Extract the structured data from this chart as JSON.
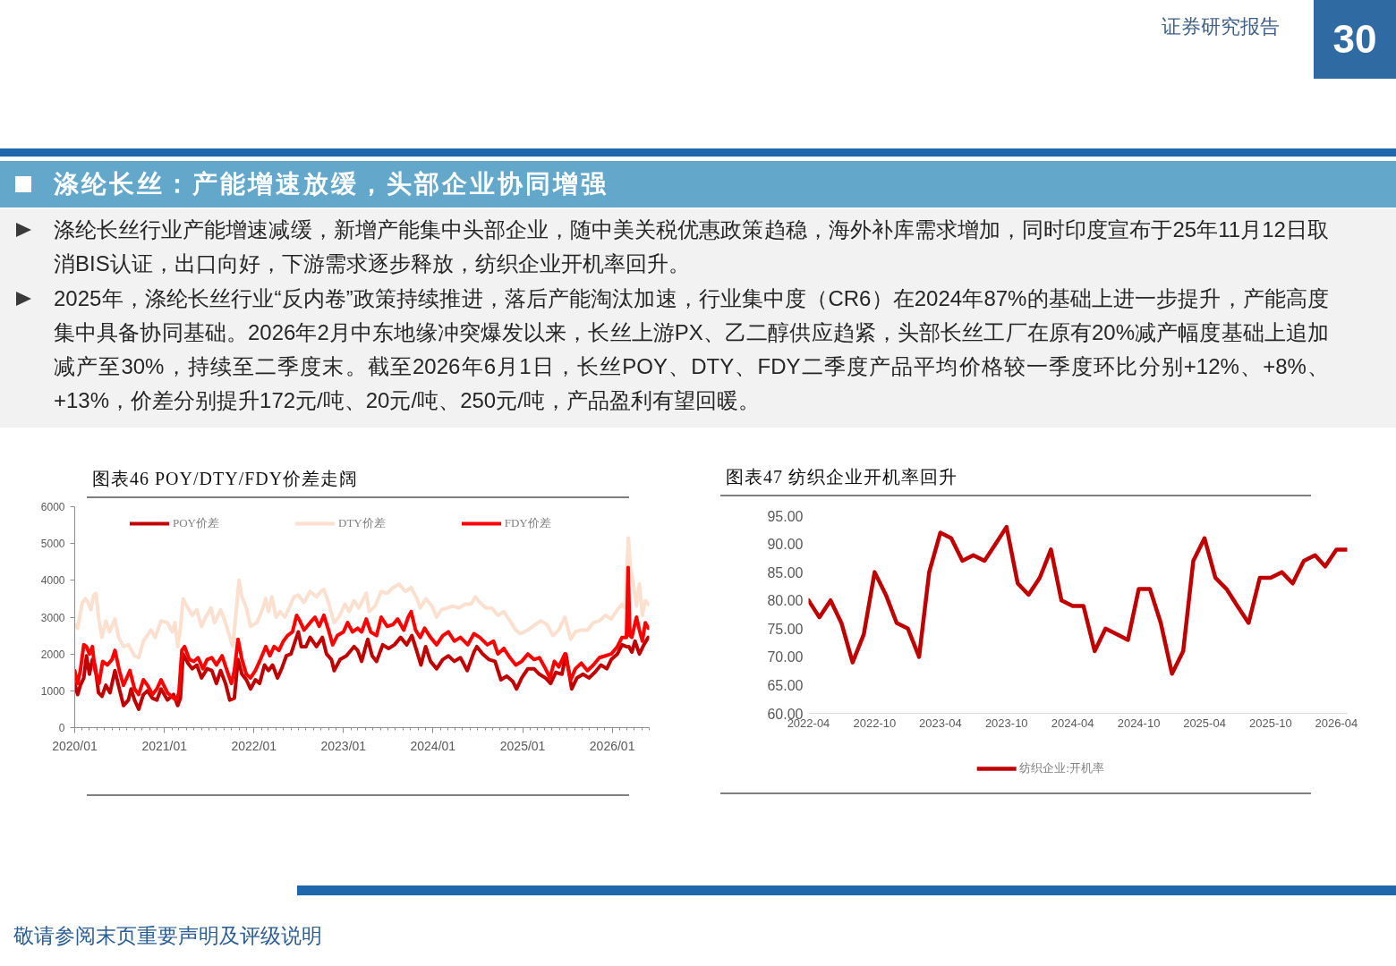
{
  "chart_data": [
    {
      "type": "other",
      "title": "涤纶长丝：产能增速放缓，头部企业协同增强",
      "annotations": [
        "证券研究报告",
        "30",
        "涤纶长丝行业产能增速减缓，新增产能集中头部企业，随中美关税优惠政策趋稳，海外补库需求增加，同时印度宣布于25年11月12日取消BIS认证，出口向好，下游需求逐步释放，纺织企业开机率回升。",
        "2025年，涤纶长丝行业“反内卷”政策持续推进，落后产能淘汰加速，行业集中度（CR6）在2024年87%的基础上进一步提升，产能高度集中具备协同基础。2026年2月中东地缘冲突爆发以来，长丝上游PX、乙二醇供应趋紧，头部长丝工厂在原有20%减产幅度基础上追加减产至30%，持续至二季度末。截至2026年6月1日，长丝POY、DTY、FDY二季度产品平均价格较一季度环比分别+12%、+8%、+13%，价差分别提升172元/吨、20元/吨、250元/吨，产品盈利有望回暖。"
      ]
    },
    {
      "type": "line",
      "title": "图表46 POY/DTY/FDY价差走阔",
      "xlim": [
        "2020-01-01",
        "2026-06-01"
      ],
      "ylim": [
        0,
        6000
      ],
      "yticks": [
        0,
        1000,
        2000,
        3000,
        4000,
        5000,
        6000
      ],
      "legend": "top",
      "xticks": [
        {
          "value": "2020-01-01",
          "label": "2020/01"
        },
        {
          "value": "2020-02-01",
          "label": null
        },
        {
          "value": "2020-03-01",
          "label": null
        },
        {
          "value": "2020-04-01",
          "label": null
        },
        {
          "value": "2020-05-01",
          "label": null
        },
        {
          "value": "2020-06-01",
          "label": null
        },
        {
          "value": "2020-07-01",
          "label": null
        },
        {
          "value": "2020-08-01",
          "label": null
        },
        {
          "value": "2020-09-01",
          "label": null
        },
        {
          "value": "2020-10-01",
          "label": null
        },
        {
          "value": "2020-11-01",
          "label": null
        },
        {
          "value": "2020-12-01",
          "label": null
        },
        {
          "value": "2021-01-01",
          "label": "2021/01"
        },
        {
          "value": "2021-02-01",
          "label": null
        },
        {
          "value": "2021-03-01",
          "label": null
        },
        {
          "value": "2021-04-01",
          "label": null
        },
        {
          "value": "2021-05-01",
          "label": null
        },
        {
          "value": "2021-06-01",
          "label": null
        },
        {
          "value": "2021-07-01",
          "label": null
        },
        {
          "value": "2021-08-01",
          "label": null
        },
        {
          "value": "2021-09-01",
          "label": null
        },
        {
          "value": "2021-10-01",
          "label": null
        },
        {
          "value": "2021-11-01",
          "label": null
        },
        {
          "value": "2021-12-01",
          "label": null
        },
        {
          "value": "2022-01-01",
          "label": "2022/01"
        },
        {
          "value": "2022-02-01",
          "label": null
        },
        {
          "value": "2022-03-01",
          "label": null
        },
        {
          "value": "2022-04-01",
          "label": null
        },
        {
          "value": "2022-05-01",
          "label": null
        },
        {
          "value": "2022-06-01",
          "label": null
        },
        {
          "value": "2022-07-01",
          "label": null
        },
        {
          "value": "2022-08-01",
          "label": null
        },
        {
          "value": "2022-09-01",
          "label": null
        },
        {
          "value": "2022-10-01",
          "label": null
        },
        {
          "value": "2022-11-01",
          "label": null
        },
        {
          "value": "2022-12-01",
          "label": null
        },
        {
          "value": "2023-01-01",
          "label": "2023/01"
        },
        {
          "value": "2023-02-01",
          "label": null
        },
        {
          "value": "2023-03-01",
          "label": null
        },
        {
          "value": "2023-04-01",
          "label": null
        },
        {
          "value": "2023-05-01",
          "label": null
        },
        {
          "value": "2023-06-01",
          "label": null
        },
        {
          "value": "2023-07-01",
          "label": null
        },
        {
          "value": "2023-08-01",
          "label": null
        },
        {
          "value": "2023-09-01",
          "label": null
        },
        {
          "value": "2023-10-01",
          "label": null
        },
        {
          "value": "2023-11-01",
          "label": null
        },
        {
          "value": "2023-12-01",
          "label": null
        },
        {
          "value": "2024-01-01",
          "label": "2024/01"
        },
        {
          "value": "2024-02-01",
          "label": null
        },
        {
          "value": "2024-03-01",
          "label": null
        },
        {
          "value": "2024-04-01",
          "label": null
        },
        {
          "value": "2024-05-01",
          "label": null
        },
        {
          "value": "2024-06-01",
          "label": null
        },
        {
          "value": "2024-07-01",
          "label": null
        },
        {
          "value": "2024-08-01",
          "label": null
        },
        {
          "value": "2024-09-01",
          "label": null
        },
        {
          "value": "2024-10-01",
          "label": null
        },
        {
          "value": "2024-11-01",
          "label": null
        },
        {
          "value": "2024-12-01",
          "label": null
        },
        {
          "value": "2025-01-01",
          "label": "2025/01"
        },
        {
          "value": "2025-02-01",
          "label": null
        },
        {
          "value": "2025-03-01",
          "label": null
        },
        {
          "value": "2025-04-01",
          "label": null
        },
        {
          "value": "2025-05-01",
          "label": null
        },
        {
          "value": "2025-06-01",
          "label": null
        },
        {
          "value": "2025-07-01",
          "label": null
        },
        {
          "value": "2025-08-01",
          "label": null
        },
        {
          "value": "2025-09-01",
          "label": null
        },
        {
          "value": "2025-10-01",
          "label": null
        },
        {
          "value": "2025-11-01",
          "label": null
        },
        {
          "value": "2025-12-01",
          "label": null
        },
        {
          "value": "2026-01-01",
          "label": "2026/01"
        },
        {
          "value": "2026-02-01",
          "label": null
        },
        {
          "value": "2026-03-01",
          "label": null
        },
        {
          "value": "2026-04-01",
          "label": null
        },
        {
          "value": "2026-05-01",
          "label": null
        },
        {
          "value": "2026-06-01",
          "label": null
        }
      ],
      "series": [
        {
          "name": "POY价差",
          "color": "#c00000",
          "x": [
            "2020-01-01",
            "2020-01-13",
            "2020-01-24",
            "2020-02-07",
            "2020-02-18",
            "2020-03-01",
            "2020-03-13",
            "2020-03-24",
            "2020-04-07",
            "2020-04-21",
            "2020-05-07",
            "2020-05-24",
            "2020-06-13",
            "2020-07-01",
            "2020-07-18",
            "2020-08-07",
            "2020-08-18",
            "2020-09-01",
            "2020-09-18",
            "2020-10-07",
            "2020-10-24",
            "2020-11-13",
            "2020-12-01",
            "2020-12-18",
            "2021-01-13",
            "2021-02-07",
            "2021-02-24",
            "2021-03-07",
            "2021-03-18",
            "2021-04-07",
            "2021-04-24",
            "2021-05-13",
            "2021-06-01",
            "2021-06-24",
            "2021-07-13",
            "2021-08-01",
            "2021-08-18",
            "2021-09-07",
            "2021-09-24",
            "2021-10-13",
            "2021-10-28",
            "2021-11-13",
            "2021-12-01",
            "2021-12-18",
            "2022-01-07",
            "2022-01-24",
            "2022-02-13",
            "2022-03-01",
            "2022-03-18",
            "2022-04-07",
            "2022-04-24",
            "2022-05-13",
            "2022-06-01",
            "2022-06-18",
            "2022-07-01",
            "2022-07-13",
            "2022-08-01",
            "2022-08-18",
            "2022-09-13",
            "2022-10-07",
            "2022-10-24",
            "2022-11-13",
            "2022-11-24",
            "2022-12-18",
            "2023-01-13",
            "2023-02-01",
            "2023-02-13",
            "2023-02-28",
            "2023-03-16",
            "2023-04-10",
            "2023-04-28",
            "2023-05-16",
            "2023-06-10",
            "2023-07-04",
            "2023-07-28",
            "2023-08-22",
            "2023-09-16",
            "2023-10-07",
            "2023-10-26",
            "2023-11-13",
            "2023-12-02",
            "2023-12-22",
            "2024-01-16",
            "2024-02-10",
            "2024-03-04",
            "2024-03-28",
            "2024-04-22",
            "2024-05-20",
            "2024-06-16",
            "2024-06-28",
            "2024-07-22",
            "2024-08-16",
            "2024-09-10",
            "2024-10-04",
            "2024-10-28",
            "2024-11-22",
            "2024-12-07",
            "2024-12-28",
            "2025-01-22",
            "2025-02-16",
            "2025-03-10",
            "2025-04-04",
            "2025-04-25",
            "2025-05-16",
            "2025-06-10",
            "2025-06-26",
            "2025-07-20",
            "2025-08-10",
            "2025-09-04",
            "2025-09-28",
            "2025-10-22",
            "2025-11-16",
            "2025-12-10",
            "2025-12-28",
            "2026-01-22",
            "2026-02-10",
            "2026-02-28",
            "2026-03-10",
            "2026-03-22",
            "2026-04-04",
            "2026-04-22",
            "2026-05-10",
            "2026-05-28"
          ],
          "values": [
            1200,
            900,
            1150,
            1350,
            1950,
            1450,
            1850,
            1700,
            950,
            850,
            1150,
            950,
            1550,
            1050,
            600,
            750,
            1050,
            750,
            500,
            900,
            1000,
            800,
            750,
            1050,
            750,
            900,
            600,
            800,
            2000,
            1750,
            1600,
            1700,
            1350,
            1600,
            1550,
            1200,
            1550,
            1200,
            750,
            800,
            1850,
            1450,
            1300,
            1050,
            1300,
            1200,
            1700,
            1550,
            1700,
            1350,
            1600,
            1950,
            2000,
            2350,
            2600,
            2200,
            2200,
            2450,
            2200,
            2450,
            2000,
            1850,
            1550,
            1850,
            1950,
            2100,
            2200,
            2100,
            1800,
            2400,
            1950,
            1800,
            2250,
            2150,
            2250,
            2450,
            2250,
            2500,
            2100,
            1700,
            2200,
            1800,
            1600,
            1850,
            1950,
            1800,
            1900,
            1550,
            2050,
            2200,
            2000,
            1850,
            1800,
            1300,
            1400,
            1250,
            1050,
            1350,
            1600,
            1600,
            1450,
            1350,
            1200,
            1500,
            1450,
            2000,
            1050,
            1350,
            1450,
            1350,
            1500,
            1700,
            1600,
            1850,
            2000,
            2250,
            2200,
            2200,
            2050,
            2350,
            2000,
            2250,
            2450
          ]
        },
        {
          "name": "DTY价差",
          "color": "#fbe0d0",
          "x": [
            "2020-01-01",
            "2020-01-13",
            "2020-02-01",
            "2020-02-13",
            "2020-02-24",
            "2020-03-07",
            "2020-03-18",
            "2020-03-28",
            "2020-04-07",
            "2020-04-21",
            "2020-05-07",
            "2020-05-22",
            "2020-06-13",
            "2020-06-28",
            "2020-07-18",
            "2020-08-07",
            "2020-09-01",
            "2020-09-18",
            "2020-10-07",
            "2020-11-07",
            "2020-11-24",
            "2020-12-18",
            "2021-01-13",
            "2021-02-01",
            "2021-02-13",
            "2021-02-24",
            "2021-03-07",
            "2021-03-18",
            "2021-04-07",
            "2021-04-24",
            "2021-05-13",
            "2021-06-01",
            "2021-06-18",
            "2021-07-10",
            "2021-07-24",
            "2021-08-18",
            "2021-09-07",
            "2021-09-18",
            "2021-10-07",
            "2021-10-18",
            "2021-11-01",
            "2021-11-13",
            "2021-12-01",
            "2021-12-18",
            "2022-01-13",
            "2022-02-01",
            "2022-02-18",
            "2022-03-01",
            "2022-03-15",
            "2022-04-01",
            "2022-04-18",
            "2022-05-07",
            "2022-05-24",
            "2022-06-13",
            "2022-07-01",
            "2022-07-24",
            "2022-08-18",
            "2022-09-13",
            "2022-10-01",
            "2022-10-13",
            "2022-11-01",
            "2022-11-24",
            "2022-12-13",
            "2023-01-07",
            "2023-01-24",
            "2023-02-13",
            "2023-03-04",
            "2023-04-04",
            "2023-04-16",
            "2023-05-10",
            "2023-06-04",
            "2023-06-28",
            "2023-07-22",
            "2023-08-16",
            "2023-09-10",
            "2023-10-04",
            "2023-10-28",
            "2023-11-10",
            "2023-12-04",
            "2023-12-28",
            "2024-01-16",
            "2024-02-04",
            "2024-02-28",
            "2024-03-22",
            "2024-04-16",
            "2024-05-10",
            "2024-06-04",
            "2024-06-22",
            "2024-07-10",
            "2024-08-04",
            "2024-08-28",
            "2024-09-22",
            "2024-10-16",
            "2024-11-10",
            "2024-12-04",
            "2024-12-22",
            "2025-01-22",
            "2025-02-22",
            "2025-03-16",
            "2025-04-10",
            "2025-05-04",
            "2025-05-28",
            "2025-06-22",
            "2025-07-16",
            "2025-08-04",
            "2025-08-28",
            "2025-09-22",
            "2025-10-16",
            "2025-11-10",
            "2025-12-04",
            "2025-12-28",
            "2026-01-22",
            "2026-02-10",
            "2026-02-22",
            "2026-03-08",
            "2026-03-16",
            "2026-03-28",
            "2026-04-10",
            "2026-04-22",
            "2026-05-04",
            "2026-05-16",
            "2026-05-28"
          ],
          "values": [
            2800,
            2700,
            3400,
            3500,
            3400,
            3200,
            3600,
            3650,
            3000,
            2450,
            2900,
            2600,
            2950,
            2450,
            2200,
            2250,
            1950,
            1900,
            2350,
            2650,
            2450,
            2900,
            2850,
            2600,
            2850,
            2200,
            2700,
            3500,
            3250,
            3050,
            3200,
            2750,
            3000,
            3250,
            2850,
            3200,
            2850,
            2600,
            2200,
            3000,
            4000,
            3550,
            3250,
            2750,
            2850,
            3150,
            3500,
            3150,
            3550,
            3000,
            3150,
            3000,
            3250,
            3550,
            3600,
            3400,
            3700,
            3550,
            3700,
            3750,
            3400,
            2850,
            3000,
            3350,
            3150,
            3450,
            3250,
            3650,
            3150,
            3300,
            3700,
            3650,
            3800,
            3900,
            3700,
            3800,
            3500,
            3250,
            3500,
            3300,
            3000,
            3200,
            3250,
            3300,
            3250,
            3350,
            3350,
            3550,
            3400,
            3250,
            3250,
            3050,
            3150,
            2900,
            2650,
            2550,
            2650,
            2800,
            2900,
            2800,
            2500,
            2650,
            3000,
            2400,
            2600,
            2650,
            2650,
            2850,
            2900,
            3050,
            2950,
            3200,
            3350,
            3250,
            5150,
            4350,
            3900,
            3300,
            3900,
            3050,
            3450,
            3350
          ]
        },
        {
          "name": "FDY价差",
          "color": "#ff0000",
          "x": [
            "2020-01-01",
            "2020-01-13",
            "2020-01-24",
            "2020-02-07",
            "2020-02-18",
            "2020-03-01",
            "2020-03-13",
            "2020-03-24",
            "2020-04-09",
            "2020-04-24",
            "2020-05-13",
            "2020-06-01",
            "2020-06-13",
            "2020-07-01",
            "2020-07-18",
            "2020-08-13",
            "2020-09-01",
            "2020-09-18",
            "2020-10-07",
            "2020-10-24",
            "2020-11-13",
            "2020-12-01",
            "2020-12-18",
            "2021-01-13",
            "2021-02-07",
            "2021-02-18",
            "2021-03-01",
            "2021-03-13",
            "2021-03-24",
            "2021-04-13",
            "2021-05-01",
            "2021-05-18",
            "2021-06-07",
            "2021-06-24",
            "2021-07-13",
            "2021-08-01",
            "2021-08-24",
            "2021-09-13",
            "2021-10-01",
            "2021-10-13",
            "2021-10-28",
            "2021-11-13",
            "2021-12-01",
            "2021-12-18",
            "2022-01-07",
            "2022-01-24",
            "2022-02-18",
            "2022-03-07",
            "2022-03-24",
            "2022-04-13",
            "2022-05-01",
            "2022-05-18",
            "2022-06-07",
            "2022-06-24",
            "2022-07-07",
            "2022-07-24",
            "2022-08-18",
            "2022-09-07",
            "2022-09-24",
            "2022-10-13",
            "2022-11-01",
            "2022-11-18",
            "2022-12-07",
            "2023-01-01",
            "2023-01-18",
            "2023-02-07",
            "2023-02-28",
            "2023-03-16",
            "2023-04-04",
            "2023-04-22",
            "2023-05-16",
            "2023-06-04",
            "2023-06-28",
            "2023-07-22",
            "2023-08-10",
            "2023-09-04",
            "2023-09-22",
            "2023-10-04",
            "2023-10-22",
            "2023-11-10",
            "2023-11-28",
            "2023-12-22",
            "2024-01-16",
            "2024-02-10",
            "2024-03-04",
            "2024-03-28",
            "2024-04-22",
            "2024-05-22",
            "2024-06-16",
            "2024-07-10",
            "2024-08-10",
            "2024-09-04",
            "2024-09-22",
            "2024-10-16",
            "2024-11-10",
            "2024-12-04",
            "2024-12-28",
            "2025-01-22",
            "2025-02-16",
            "2025-03-10",
            "2025-04-04",
            "2025-04-22",
            "2025-05-10",
            "2025-05-28",
            "2025-06-22",
            "2025-07-16",
            "2025-08-04",
            "2025-08-28",
            "2025-09-22",
            "2025-10-16",
            "2025-11-10",
            "2025-12-04",
            "2025-12-28",
            "2026-01-22",
            "2026-02-10",
            "2026-02-28",
            "2026-03-07",
            "2026-03-14",
            "2026-03-22",
            "2026-04-10",
            "2026-04-22",
            "2026-05-04",
            "2026-05-16",
            "2026-05-28"
          ],
          "values": [
            1550,
            1200,
            1550,
            2250,
            2200,
            2000,
            2200,
            1550,
            1200,
            1800,
            1700,
            1850,
            2100,
            1550,
            1150,
            1550,
            1050,
            900,
            1300,
            1150,
            900,
            1050,
            1300,
            950,
            800,
            750,
            950,
            2100,
            2200,
            1850,
            1800,
            1900,
            1600,
            1850,
            1900,
            1700,
            1950,
            1550,
            1200,
            1550,
            2400,
            1850,
            1450,
            1350,
            1550,
            1800,
            2200,
            1950,
            2200,
            2100,
            2350,
            2500,
            2600,
            3050,
            2900,
            2650,
            2850,
            3000,
            2750,
            3050,
            2650,
            2250,
            2500,
            2600,
            2850,
            2600,
            2700,
            2600,
            2950,
            2600,
            2500,
            3000,
            2750,
            2800,
            2950,
            2650,
            3000,
            3150,
            2650,
            2450,
            2700,
            2450,
            2250,
            2500,
            2600,
            2350,
            2450,
            2250,
            2550,
            2450,
            2250,
            2350,
            2000,
            2150,
            1900,
            1700,
            1800,
            2000,
            1850,
            1900,
            1600,
            1350,
            1800,
            1650,
            2000,
            1300,
            1600,
            1750,
            1550,
            1700,
            1900,
            1950,
            2000,
            2200,
            2450,
            2450,
            4350,
            2500,
            2450,
            3000,
            2650,
            2350,
            2850,
            2700
          ]
        }
      ]
    },
    {
      "type": "line",
      "title": "图表47 纺织企业开机率回升",
      "legend": "bottom",
      "xlim": [
        "2022-04",
        "2026-05"
      ],
      "xticks": [
        "2022-04",
        "2022-10",
        "2023-04",
        "2023-10",
        "2024-04",
        "2024-10",
        "2025-04",
        "2025-10",
        "2026-04"
      ],
      "ylim": [
        60,
        95
      ],
      "yticks": [
        {
          "value": 60,
          "label": "60.00"
        },
        {
          "value": 65,
          "label": "65.00"
        },
        {
          "value": 70,
          "label": "70.00"
        },
        {
          "value": 75,
          "label": "75.00"
        },
        {
          "value": 80,
          "label": "80.00"
        },
        {
          "value": 85,
          "label": "85.00"
        },
        {
          "value": 90,
          "label": "90.00"
        },
        {
          "value": 95,
          "label": "95.00"
        }
      ],
      "x": [
        "2022-04",
        "2022-05",
        "2022-06",
        "2022-07",
        "2022-08",
        "2022-09",
        "2022-10",
        "2022-11",
        "2022-12",
        "2023-01",
        "2023-02",
        "2023-03",
        "2023-04",
        "2023-05",
        "2023-06",
        "2023-07",
        "2023-08",
        "2023-09",
        "2023-10",
        "2023-11",
        "2023-12",
        "2024-01",
        "2024-02",
        "2024-03",
        "2024-04",
        "2024-05",
        "2024-06",
        "2024-07",
        "2024-08",
        "2024-09",
        "2024-10",
        "2024-11",
        "2024-12",
        "2025-01",
        "2025-02",
        "2025-03",
        "2025-04",
        "2025-05",
        "2025-06",
        "2025-07",
        "2025-08",
        "2025-09",
        "2025-10",
        "2025-11",
        "2025-12",
        "2026-01",
        "2026-02",
        "2026-03",
        "2026-04",
        "2026-05"
      ],
      "series": [
        {
          "name": "纺织企业:开机率",
          "color": "#c00000",
          "values": [
            80,
            77,
            80,
            76,
            69,
            74,
            85,
            81,
            76,
            75,
            70,
            85,
            92,
            91,
            87,
            88,
            87,
            90,
            93,
            83,
            81,
            84,
            89,
            80,
            79,
            79,
            71,
            75,
            74,
            73,
            82,
            82,
            76,
            67,
            71,
            87,
            91,
            84,
            82,
            79,
            76,
            84,
            84,
            85,
            83,
            87,
            88,
            86,
            89,
            89
          ]
        }
      ]
    },
    {
      "type": "other",
      "annotations": [
        "敬请参阅末页重要声明及评级说明"
      ]
    }
  ]
}
